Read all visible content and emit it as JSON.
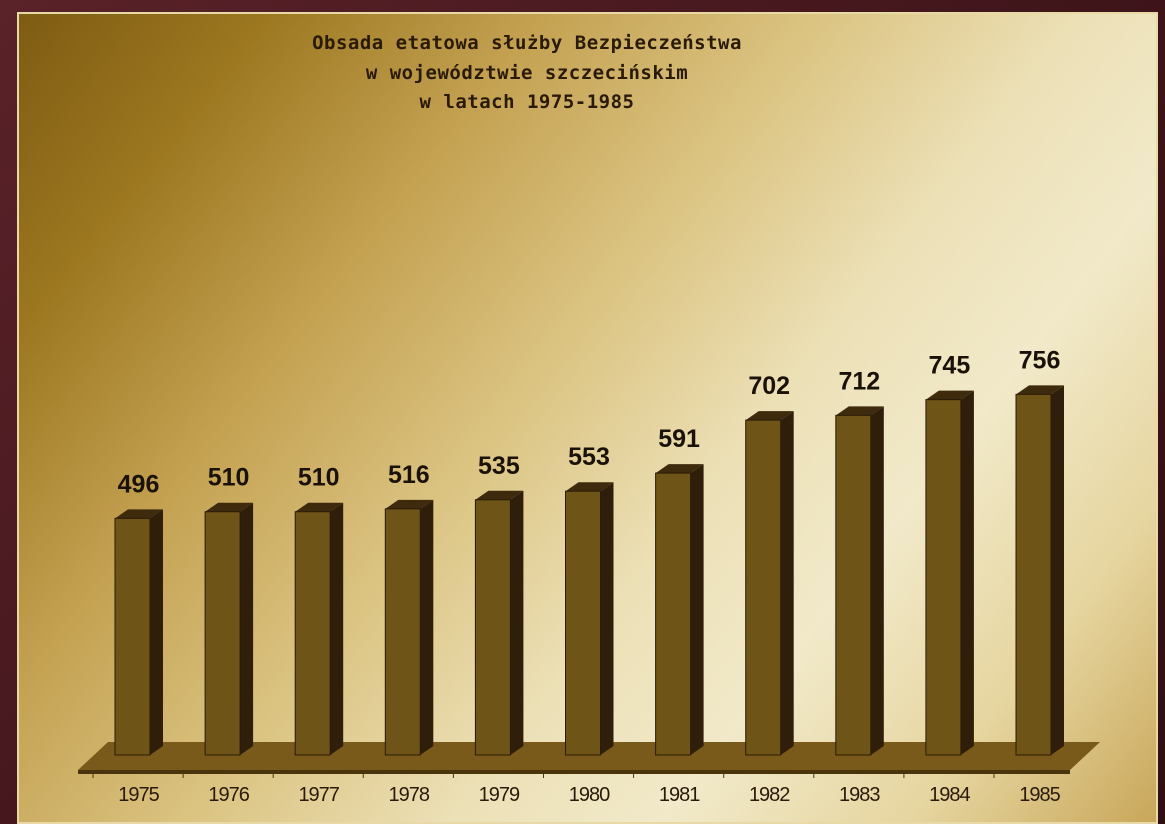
{
  "chart_data": {
    "type": "bar",
    "title_lines": [
      "Obsada etatowa służby Bezpieczeństwa",
      "w województwie szczecińskim",
      "w latach 1975-1985"
    ],
    "categories": [
      "1975",
      "1976",
      "1977",
      "1978",
      "1979",
      "1980",
      "1981",
      "1982",
      "1983",
      "1984",
      "1985"
    ],
    "values": [
      496,
      510,
      510,
      516,
      535,
      553,
      591,
      702,
      712,
      745,
      756
    ],
    "data_labels": [
      "496",
      "510",
      "510",
      "516",
      "535",
      "553",
      "591",
      "702",
      "712",
      "745",
      "756"
    ],
    "xlabel": "",
    "ylabel": "",
    "ylim": [
      0,
      800
    ],
    "grid": false,
    "legend": "none",
    "style": "3d-bars",
    "colors": {
      "bar_front": "#6e5416",
      "bar_side": "#2e1e0a",
      "bar_top": "#3e2a0c",
      "floor": "#7a5a1a",
      "text": "#1a1108"
    }
  }
}
